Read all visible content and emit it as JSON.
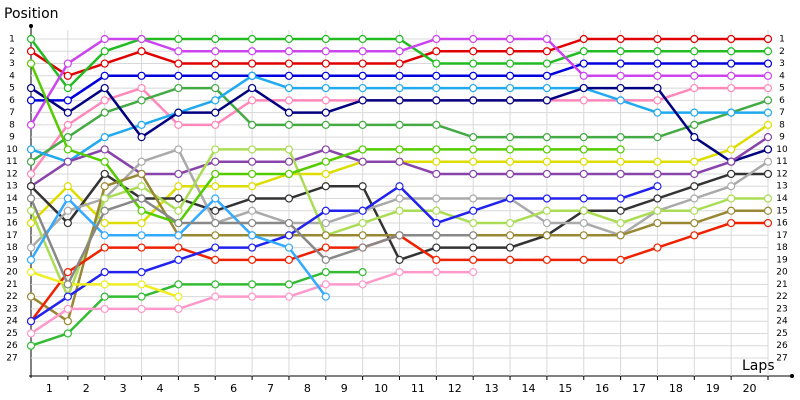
{
  "chart_data": {
    "type": "line",
    "title": "Position",
    "x_label": "Laps",
    "x": [
      0,
      1,
      2,
      3,
      4,
      5,
      6,
      7,
      8,
      9,
      10,
      11,
      12,
      13,
      14,
      15,
      16,
      17,
      18,
      19,
      20
    ],
    "xlim": [
      0,
      20
    ],
    "xticks": [
      1,
      2,
      3,
      4,
      5,
      6,
      7,
      8,
      9,
      10,
      11,
      12,
      13,
      14,
      15,
      16,
      17,
      18,
      19,
      20
    ],
    "ylim": [
      1,
      27
    ],
    "yticks": [
      1,
      2,
      3,
      4,
      5,
      6,
      7,
      8,
      9,
      10,
      11,
      12,
      13,
      14,
      15,
      16,
      17,
      18,
      19,
      20,
      21,
      22,
      23,
      24,
      25,
      26,
      27
    ],
    "y_inverted": true,
    "grid": true,
    "series": [
      {
        "color": "#e00000",
        "values": [
          2,
          4,
          3,
          2,
          3,
          3,
          3,
          3,
          3,
          3,
          3,
          2,
          2,
          2,
          2,
          1,
          1,
          1,
          1,
          1,
          1
        ]
      },
      {
        "color": "#22bb22",
        "values": [
          1,
          5,
          2,
          1,
          1,
          1,
          1,
          1,
          1,
          1,
          1,
          3,
          3,
          3,
          3,
          2,
          2,
          2,
          2,
          2,
          2
        ]
      },
      {
        "color": "#0000dd",
        "values": [
          6,
          6,
          4,
          4,
          4,
          4,
          4,
          4,
          4,
          4,
          4,
          4,
          4,
          4,
          4,
          3,
          3,
          3,
          3,
          3,
          3
        ]
      },
      {
        "color": "#cc44ee",
        "values": [
          8,
          3,
          1,
          1,
          2,
          2,
          2,
          2,
          2,
          2,
          2,
          1,
          1,
          1,
          1,
          4,
          4,
          4,
          4,
          4,
          4
        ]
      },
      {
        "color": "#ff88bb",
        "values": [
          12,
          8,
          6,
          5,
          8,
          8,
          6,
          6,
          6,
          6,
          6,
          6,
          6,
          6,
          6,
          6,
          6,
          6,
          5,
          5,
          5
        ]
      },
      {
        "color": "#44aa44",
        "values": [
          11,
          9,
          7,
          6,
          5,
          5,
          8,
          8,
          8,
          8,
          8,
          8,
          9,
          9,
          9,
          9,
          9,
          9,
          8,
          7,
          6
        ]
      },
      {
        "color": "#22aaee",
        "values": [
          10,
          11,
          9,
          8,
          7,
          6,
          4,
          5,
          5,
          5,
          5,
          5,
          5,
          5,
          5,
          5,
          6,
          7,
          7,
          7,
          7
        ]
      },
      {
        "color": "#dddd00",
        "values": [
          16,
          13,
          16,
          16,
          13,
          13,
          13,
          12,
          12,
          11,
          11,
          11,
          11,
          11,
          11,
          11,
          11,
          11,
          11,
          10,
          8
        ]
      },
      {
        "color": "#000080",
        "values": [
          5,
          7,
          5,
          9,
          7,
          7,
          5,
          7,
          7,
          6,
          6,
          6,
          6,
          6,
          6,
          5,
          5,
          5,
          9,
          11,
          10
        ]
      },
      {
        "color": "#8844aa",
        "values": [
          13,
          11,
          10,
          12,
          12,
          11,
          11,
          11,
          10,
          11,
          11,
          12,
          12,
          12,
          12,
          12,
          12,
          12,
          12,
          11,
          9
        ]
      },
      {
        "color": "#333333",
        "values": [
          13,
          16,
          12,
          14,
          14,
          15,
          14,
          14,
          13,
          13,
          19,
          18,
          18,
          18,
          17,
          15,
          15,
          14,
          13,
          12,
          12
        ]
      },
      {
        "color": "#aaaaaa",
        "values": [
          18,
          15,
          14,
          11,
          10,
          16,
          15,
          16,
          16,
          15,
          14,
          14,
          14,
          14,
          16,
          16,
          17,
          15,
          14,
          13,
          11
        ]
      },
      {
        "color": "#aadd55",
        "values": [
          15,
          22,
          14,
          13,
          15,
          10,
          10,
          10,
          17,
          16,
          15,
          15,
          16,
          16,
          15,
          15,
          16,
          15,
          15,
          14,
          14
        ]
      },
      {
        "color": "#998833",
        "values": [
          22,
          24,
          13,
          12,
          17,
          17,
          17,
          17,
          17,
          17,
          17,
          17,
          17,
          17,
          17,
          17,
          17,
          16,
          16,
          15,
          15
        ]
      },
      {
        "color": "#ee2200",
        "values": [
          24,
          20,
          18,
          18,
          18,
          19,
          19,
          19,
          18,
          18,
          17,
          19,
          19,
          19,
          19,
          19,
          19,
          18,
          17,
          16,
          16
        ]
      },
      {
        "color": "#33bb33",
        "values": [
          26,
          25,
          22,
          22,
          21,
          21,
          21,
          21,
          20,
          20,
          null,
          null,
          null,
          null,
          null,
          null,
          null,
          null,
          null,
          null,
          null
        ]
      },
      {
        "color": "#2222ee",
        "values": [
          24,
          22,
          20,
          20,
          19,
          18,
          18,
          17,
          15,
          15,
          13,
          16,
          15,
          14,
          14,
          14,
          14,
          13,
          null,
          null,
          null
        ]
      },
      {
        "color": "#ff99cc",
        "values": [
          25,
          23,
          23,
          23,
          23,
          22,
          22,
          22,
          21,
          21,
          20,
          20,
          20,
          null,
          null,
          null,
          null,
          null,
          null,
          null,
          null
        ]
      },
      {
        "color": "#eeee22",
        "values": [
          20,
          21,
          21,
          21,
          22,
          null,
          null,
          null,
          null,
          null,
          null,
          null,
          null,
          null,
          null,
          null,
          null,
          null,
          null,
          null,
          null
        ]
      },
      {
        "color": "#33aaff",
        "values": [
          19,
          14,
          17,
          17,
          17,
          14,
          17,
          18,
          22,
          null,
          null,
          null,
          null,
          null,
          null,
          null,
          null,
          null,
          null,
          null,
          null
        ]
      },
      {
        "color": "#55cc00",
        "values": [
          3,
          10,
          11,
          15,
          16,
          12,
          12,
          12,
          11,
          10,
          10,
          10,
          10,
          10,
          10,
          10,
          10,
          null,
          null,
          null,
          null
        ]
      },
      {
        "color": "#888888",
        "values": [
          14,
          21,
          15,
          14,
          16,
          16,
          16,
          16,
          19,
          18,
          17,
          17,
          17,
          null,
          null,
          null,
          null,
          null,
          null,
          null,
          null
        ]
      }
    ]
  }
}
